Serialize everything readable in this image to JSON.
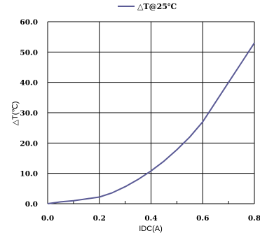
{
  "chart_data": {
    "type": "line",
    "title": "",
    "xlabel": "IDC(A)",
    "ylabel": "△T(℃)",
    "xlim": [
      0.0,
      0.8
    ],
    "ylim": [
      0.0,
      60.0
    ],
    "x_ticks": [
      "0.0",
      "0.2",
      "0.4",
      "0.6",
      "0.8"
    ],
    "y_ticks": [
      "0.0",
      "10.0",
      "20.0",
      "30.0",
      "40.0",
      "50.0",
      "60.0"
    ],
    "grid": true,
    "legend": {
      "position": "top-center",
      "entries": [
        "△T@25℃"
      ]
    },
    "series": [
      {
        "name": "△T@25℃",
        "color": "#5b5b96",
        "x": [
          0.0,
          0.05,
          0.1,
          0.15,
          0.2,
          0.25,
          0.3,
          0.35,
          0.4,
          0.45,
          0.5,
          0.55,
          0.6,
          0.65,
          0.7,
          0.75,
          0.8
        ],
        "y": [
          0.0,
          0.6,
          1.0,
          1.6,
          2.2,
          3.6,
          5.6,
          8.0,
          10.8,
          14.0,
          17.8,
          22.0,
          27.0,
          33.5,
          40.0,
          46.5,
          53.0
        ]
      }
    ]
  }
}
